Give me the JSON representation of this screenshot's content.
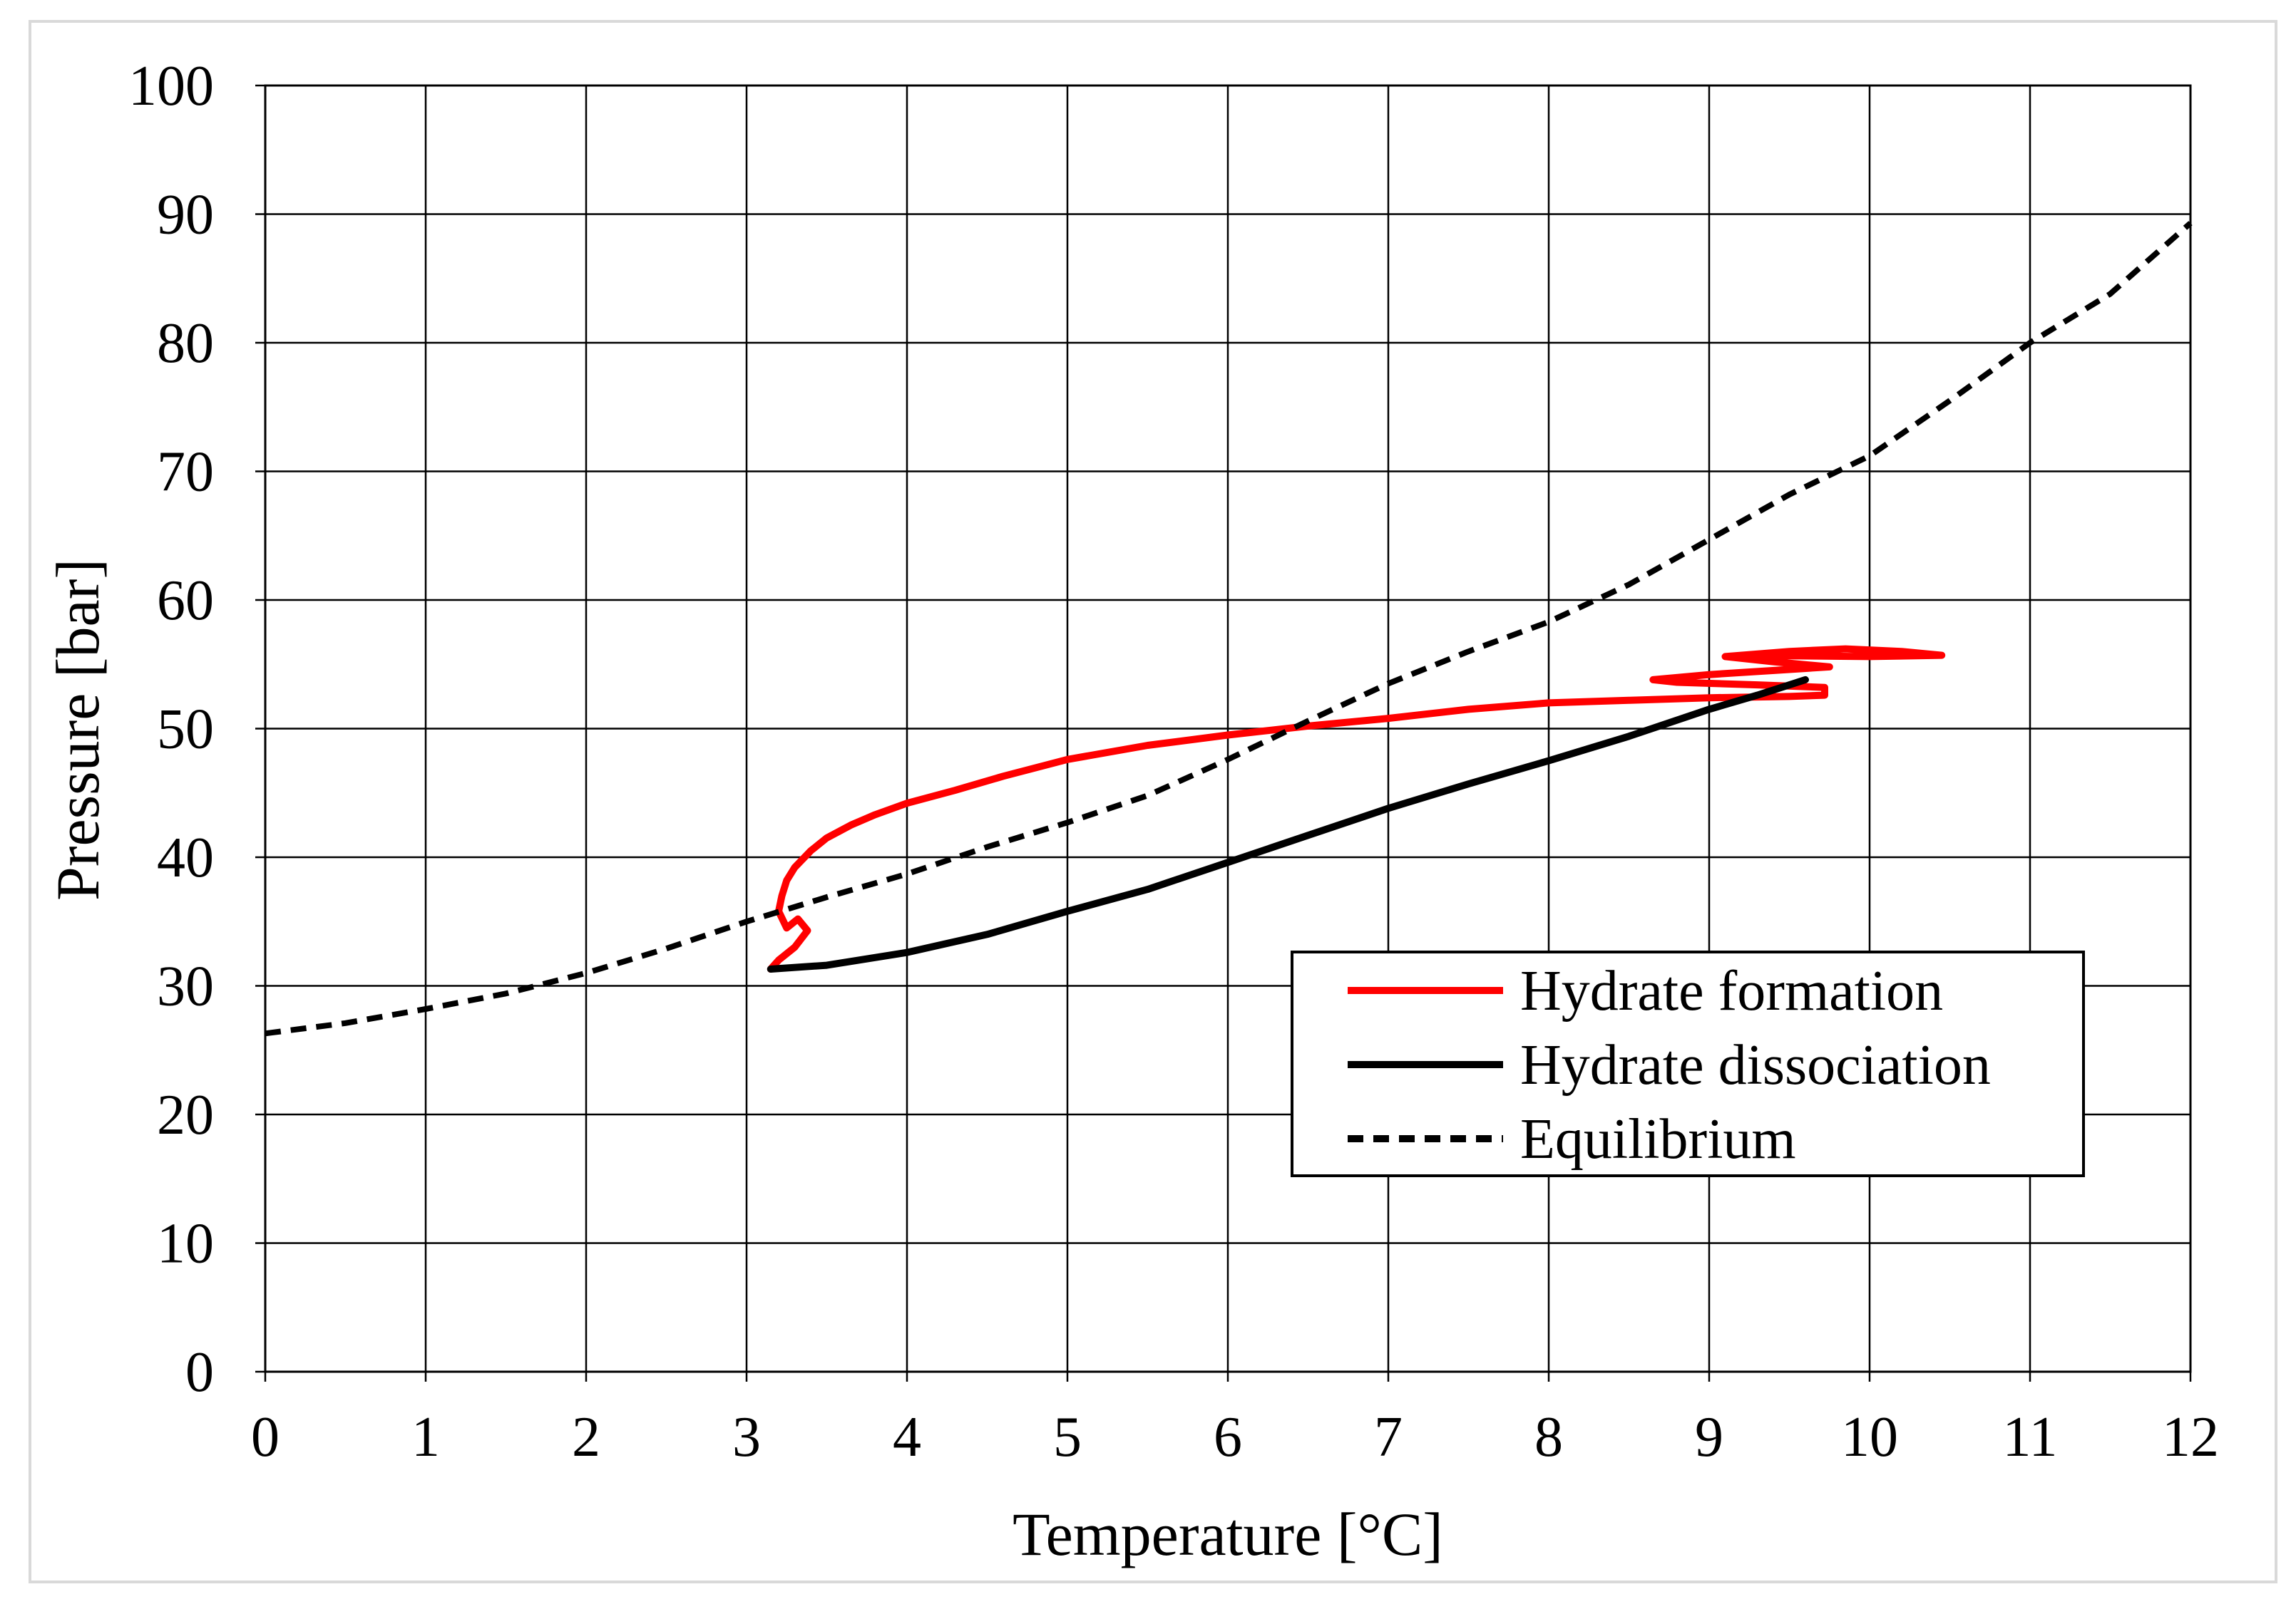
{
  "colors": {
    "background": "#ffffff",
    "chart_border": "#d9d9d9",
    "grid": "#000000",
    "formation": "#ff0000",
    "dissociation": "#000000",
    "equilibrium": "#000000"
  },
  "chart_data": {
    "type": "line",
    "title": "",
    "xlabel": "Temperature [°C]",
    "ylabel": "Pressure [bar]",
    "xlim": [
      0,
      12
    ],
    "ylim": [
      0,
      100
    ],
    "x_ticks": [
      0,
      1,
      2,
      3,
      4,
      5,
      6,
      7,
      8,
      9,
      10,
      11,
      12
    ],
    "y_ticks": [
      0,
      10,
      20,
      30,
      40,
      50,
      60,
      70,
      80,
      90,
      100
    ],
    "grid": true,
    "legend": {
      "placement": "lower-right",
      "entries": [
        "Hydrate formation",
        "Hydrate dissociation",
        "Equilibrium"
      ]
    },
    "series": [
      {
        "name": "Hydrate formation",
        "style": "solid",
        "color": "#ff0000",
        "points": [
          [
            3.15,
            31.3
          ],
          [
            3.2,
            32.0
          ],
          [
            3.3,
            33.0
          ],
          [
            3.38,
            34.3
          ],
          [
            3.32,
            35.2
          ],
          [
            3.25,
            34.5
          ],
          [
            3.2,
            35.8
          ],
          [
            3.22,
            37.0
          ],
          [
            3.25,
            38.2
          ],
          [
            3.3,
            39.2
          ],
          [
            3.4,
            40.5
          ],
          [
            3.5,
            41.5
          ],
          [
            3.65,
            42.5
          ],
          [
            3.8,
            43.3
          ],
          [
            4.0,
            44.2
          ],
          [
            4.3,
            45.2
          ],
          [
            4.6,
            46.3
          ],
          [
            5.0,
            47.6
          ],
          [
            5.5,
            48.7
          ],
          [
            6.0,
            49.5
          ],
          [
            6.5,
            50.2
          ],
          [
            7.0,
            50.8
          ],
          [
            7.5,
            51.5
          ],
          [
            8.0,
            52.0
          ],
          [
            8.5,
            52.2
          ],
          [
            9.0,
            52.4
          ],
          [
            9.5,
            52.5
          ],
          [
            9.72,
            52.6
          ],
          [
            9.72,
            53.2
          ],
          [
            9.3,
            53.4
          ],
          [
            8.8,
            53.6
          ],
          [
            8.65,
            53.8
          ],
          [
            9.0,
            54.2
          ],
          [
            9.5,
            54.6
          ],
          [
            9.75,
            54.8
          ],
          [
            9.4,
            55.2
          ],
          [
            9.1,
            55.6
          ],
          [
            9.5,
            56.0
          ],
          [
            9.85,
            56.2
          ],
          [
            10.2,
            56.0
          ],
          [
            10.45,
            55.7
          ],
          [
            10.0,
            55.6
          ],
          [
            9.2,
            55.7
          ]
        ]
      },
      {
        "name": "Hydrate dissociation",
        "style": "solid",
        "color": "#000000",
        "points": [
          [
            3.15,
            31.3
          ],
          [
            3.5,
            31.6
          ],
          [
            4.0,
            32.6
          ],
          [
            4.5,
            34.0
          ],
          [
            5.0,
            35.8
          ],
          [
            5.5,
            37.5
          ],
          [
            6.0,
            39.6
          ],
          [
            6.5,
            41.7
          ],
          [
            7.0,
            43.8
          ],
          [
            7.5,
            45.7
          ],
          [
            8.0,
            47.5
          ],
          [
            8.5,
            49.4
          ],
          [
            9.0,
            51.5
          ],
          [
            9.3,
            52.6
          ],
          [
            9.6,
            53.8
          ]
        ]
      },
      {
        "name": "Equilibrium",
        "style": "dashed",
        "color": "#000000",
        "points": [
          [
            0.0,
            26.3
          ],
          [
            0.5,
            27.1
          ],
          [
            1.0,
            28.2
          ],
          [
            1.5,
            29.4
          ],
          [
            2.0,
            31.0
          ],
          [
            2.5,
            32.9
          ],
          [
            3.0,
            35.0
          ],
          [
            3.5,
            36.9
          ],
          [
            4.0,
            38.7
          ],
          [
            4.5,
            40.8
          ],
          [
            5.0,
            42.7
          ],
          [
            5.5,
            44.8
          ],
          [
            6.0,
            47.6
          ],
          [
            6.5,
            50.6
          ],
          [
            7.0,
            53.5
          ],
          [
            7.5,
            56.0
          ],
          [
            8.0,
            58.3
          ],
          [
            8.5,
            61.2
          ],
          [
            9.0,
            64.7
          ],
          [
            9.5,
            68.2
          ],
          [
            10.0,
            71.2
          ],
          [
            10.5,
            75.5
          ],
          [
            11.0,
            80.0
          ],
          [
            11.5,
            83.8
          ],
          [
            12.0,
            89.3
          ]
        ]
      }
    ]
  }
}
